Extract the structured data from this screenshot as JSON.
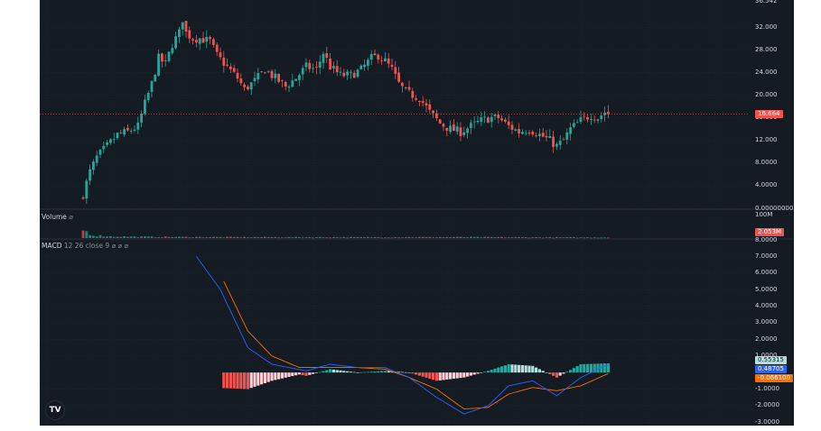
{
  "price_pane": {
    "ticks": [
      "32.000",
      "28.000",
      "24.000",
      "20.000",
      "16.000",
      "12.000",
      "8.0000",
      "4.0000",
      "0.00000000"
    ],
    "top_cut_label": "36.542",
    "last_price_label": "16.664",
    "last_price": 16.664,
    "price_range": [
      0,
      36.8
    ]
  },
  "volume_pane": {
    "title": "Volume",
    "title_dims": "⌀",
    "tick": "100M",
    "last_label": "2.053M"
  },
  "macd_pane": {
    "title": "MACD",
    "params": "12 26 close 9 ⌀ ⌀ ⌀",
    "ticks": [
      "8.0000",
      "7.0000",
      "6.0000",
      "5.0000",
      "4.0000",
      "3.0000",
      "2.0000",
      "1.0000",
      "-1.0000",
      "-2.0000",
      "-3.0000"
    ],
    "hist_label": "0.55315",
    "macd_label": "0.48705",
    "signal_label": "-0.066100",
    "range": [
      -3.2,
      8.0
    ]
  },
  "colors": {
    "up": "#26a69a",
    "down": "#ef5350",
    "hist_up_strong": "#26a69a",
    "hist_up_weak": "#b2dfdb",
    "hist_down_strong": "#ef5350",
    "hist_down_weak": "#ffcdd2",
    "macd_line": "#2962ff",
    "signal_line": "#ff6d00",
    "background": "#141b22",
    "grid": "#1e2a33"
  },
  "chart_data": {
    "type": "candlestick",
    "anchors": [
      [
        0,
        2.5
      ],
      [
        2,
        6.5
      ],
      [
        4,
        9.0
      ],
      [
        7,
        11.0
      ],
      [
        10,
        13.0
      ],
      [
        13,
        13.5
      ],
      [
        16,
        14.5
      ],
      [
        18,
        18.5
      ],
      [
        20,
        22.0
      ],
      [
        22,
        26.5
      ],
      [
        24,
        25.5
      ],
      [
        26,
        29.0
      ],
      [
        28,
        31.0
      ],
      [
        29,
        33.5
      ],
      [
        30,
        31.0
      ],
      [
        32,
        30.0
      ],
      [
        34,
        30.0
      ],
      [
        37,
        29.5
      ],
      [
        39,
        27.0
      ],
      [
        42,
        25.0
      ],
      [
        45,
        23.0
      ],
      [
        47,
        21.0
      ],
      [
        50,
        22.5
      ],
      [
        53,
        24.5
      ],
      [
        56,
        23.0
      ],
      [
        59,
        21.5
      ],
      [
        62,
        23.0
      ],
      [
        65,
        25.0
      ],
      [
        68,
        24.5
      ],
      [
        70,
        27.5
      ],
      [
        72,
        25.0
      ],
      [
        75,
        23.5
      ],
      [
        78,
        23.5
      ],
      [
        81,
        24.5
      ],
      [
        84,
        26.5
      ],
      [
        86,
        27.0
      ],
      [
        88,
        26.0
      ],
      [
        90,
        24.5
      ],
      [
        92,
        22.0
      ],
      [
        94,
        20.5
      ],
      [
        96,
        20.0
      ],
      [
        98,
        19.5
      ],
      [
        101,
        17.0
      ],
      [
        104,
        15.0
      ],
      [
        107,
        14.0
      ],
      [
        110,
        13.5
      ],
      [
        113,
        14.5
      ],
      [
        116,
        15.5
      ],
      [
        119,
        16.0
      ],
      [
        121,
        16.0
      ],
      [
        124,
        14.5
      ],
      [
        127,
        13.5
      ],
      [
        130,
        14.0
      ],
      [
        133,
        13.0
      ],
      [
        136,
        12.0
      ],
      [
        138,
        11.0
      ],
      [
        140,
        12.0
      ],
      [
        142,
        14.0
      ],
      [
        145,
        15.5
      ],
      [
        148,
        16.5
      ],
      [
        150,
        16.0
      ],
      [
        152,
        17.0
      ],
      [
        153,
        16.664
      ]
    ],
    "volume_anchors": [
      [
        0,
        35
      ],
      [
        3,
        12
      ],
      [
        8,
        7
      ],
      [
        20,
        5
      ],
      [
        40,
        4
      ],
      [
        80,
        3.5
      ],
      [
        110,
        4
      ],
      [
        153,
        2.5
      ]
    ],
    "volume_ylim": [
      0,
      120
    ],
    "macd_anchors": [
      [
        33,
        7.0
      ],
      [
        40,
        5.0
      ],
      [
        48,
        1.5
      ],
      [
        55,
        0.5
      ],
      [
        65,
        0.1
      ],
      [
        72,
        0.5
      ],
      [
        80,
        0.3
      ],
      [
        88,
        0.3
      ],
      [
        95,
        -0.3
      ],
      [
        103,
        -1.5
      ],
      [
        111,
        -2.5
      ],
      [
        118,
        -2.0
      ],
      [
        124,
        -0.8
      ],
      [
        131,
        -0.5
      ],
      [
        138,
        -1.4
      ],
      [
        145,
        -0.3
      ],
      [
        153,
        0.48705
      ]
    ],
    "signal_anchors": [
      [
        41,
        5.5
      ],
      [
        48,
        2.5
      ],
      [
        55,
        1.0
      ],
      [
        63,
        0.3
      ],
      [
        72,
        0.3
      ],
      [
        80,
        0.3
      ],
      [
        88,
        0.2
      ],
      [
        95,
        -0.3
      ],
      [
        103,
        -1.0
      ],
      [
        111,
        -2.2
      ],
      [
        118,
        -2.1
      ],
      [
        124,
        -1.3
      ],
      [
        131,
        -0.9
      ],
      [
        138,
        -1.1
      ],
      [
        145,
        -0.8
      ],
      [
        153,
        -0.0661
      ]
    ]
  }
}
